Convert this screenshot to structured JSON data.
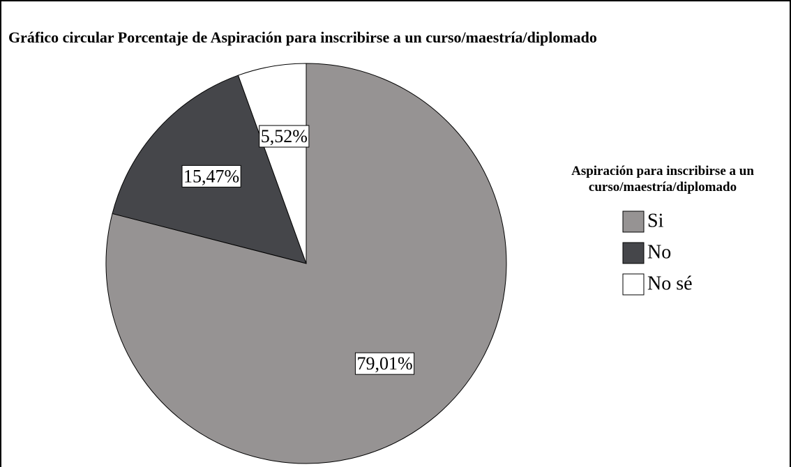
{
  "chart_data": {
    "type": "pie",
    "title": "Gráfico circular Porcentaje de Aspiración para inscribirse a un curso/maestría/diplomado",
    "legend_title": "Aspiración para inscribirse a un curso/maestría/diplomado",
    "categories": [
      "Si",
      "No",
      "No sé"
    ],
    "values": [
      79.01,
      15.47,
      5.52
    ],
    "value_labels": [
      "79,01%",
      "15,47%",
      "5,52%"
    ],
    "colors": [
      "#969393",
      "#45464a",
      "#ffffff"
    ],
    "legend": "right"
  }
}
